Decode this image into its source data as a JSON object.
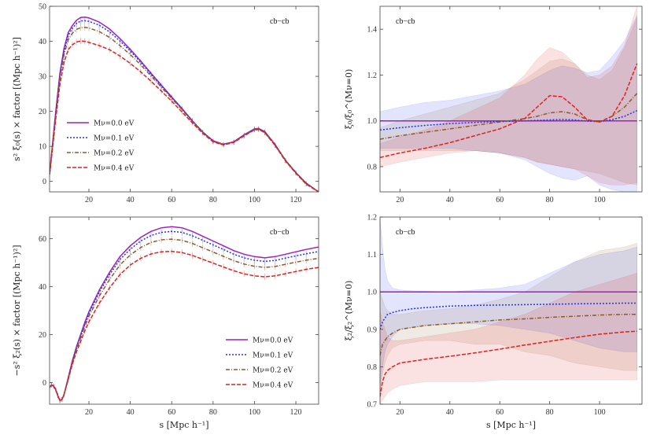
{
  "chart_data": [
    {
      "id": "p1",
      "type": "line",
      "title": "cb−cb",
      "ylabel": "s² ξ₀(s) × factor   [(Mpc h⁻¹)²]",
      "xlim": [
        1,
        131
      ],
      "ylim": [
        -3,
        50
      ],
      "xticks": [
        20,
        40,
        60,
        80,
        100,
        120
      ],
      "yticks": [
        0,
        10,
        20,
        30,
        40,
        50
      ],
      "x": [
        1,
        2,
        4,
        6,
        8,
        10,
        12,
        14,
        16,
        18,
        20,
        25,
        30,
        35,
        40,
        45,
        50,
        55,
        60,
        65,
        70,
        75,
        80,
        85,
        90,
        95,
        100,
        102,
        105,
        110,
        115,
        120,
        125,
        131
      ],
      "series": [
        {
          "name": "Mν=0.0 eV",
          "color": "#a020c0",
          "dash": "",
          "errors": false,
          "values": [
            2,
            8,
            20,
            31,
            38,
            42.5,
            44.5,
            46,
            46.8,
            46.9,
            46.7,
            45.5,
            43.5,
            40.8,
            37.7,
            34.4,
            30.9,
            27.5,
            24.1,
            20.8,
            17.3,
            14.1,
            11.6,
            10.6,
            11.3,
            13.3,
            15.0,
            15.1,
            14.2,
            10.5,
            6.0,
            2.5,
            -0.5,
            -3.0
          ]
        },
        {
          "name": "Mν=0.1 eV",
          "color": "#2233ee",
          "dash": "2 2",
          "errors": true,
          "values": [
            2,
            7.8,
            19.6,
            30.4,
            37.3,
            41.7,
            43.7,
            45.1,
            45.8,
            45.9,
            45.7,
            44.6,
            42.7,
            40.1,
            37.2,
            34.0,
            30.6,
            27.3,
            24.0,
            20.7,
            17.3,
            14.1,
            11.5,
            10.5,
            11.2,
            13.2,
            14.9,
            15.0,
            14.1,
            10.4,
            6.0,
            2.5,
            -0.6,
            -3.0
          ]
        },
        {
          "name": "Mν=0.2 eV",
          "color": "#8b5a2b",
          "dash": "5 2 1 2",
          "errors": true,
          "values": [
            2,
            7.5,
            19.0,
            29.5,
            36.2,
            40.4,
            42.3,
            43.4,
            43.9,
            44.0,
            43.8,
            42.8,
            41.1,
            38.8,
            36.2,
            33.3,
            30.1,
            26.9,
            23.7,
            20.5,
            17.1,
            14.0,
            11.4,
            10.5,
            11.2,
            13.1,
            14.8,
            14.9,
            14.0,
            10.3,
            5.9,
            2.4,
            -0.7,
            -3.0
          ]
        },
        {
          "name": "Mν=0.4 eV",
          "color": "#dd2222",
          "dash": "5 2",
          "errors": true,
          "values": [
            2,
            7.0,
            18.0,
            27.8,
            34.0,
            37.6,
            39.0,
            39.8,
            40.1,
            40.0,
            39.7,
            38.8,
            37.6,
            35.8,
            33.7,
            31.3,
            28.6,
            25.8,
            22.9,
            19.8,
            16.7,
            13.7,
            11.3,
            10.4,
            11.1,
            13.0,
            14.7,
            14.8,
            13.9,
            10.2,
            5.8,
            2.3,
            -0.8,
            -3.0
          ]
        }
      ],
      "legend": "bottom-left",
      "xlabel": ""
    },
    {
      "id": "p2",
      "type": "line",
      "title": "cb−cb",
      "ylabel": "ξ₀/ξ₀^(Mν=0)",
      "xlim": [
        12,
        117
      ],
      "ylim": [
        0.69,
        1.5
      ],
      "xticks": [
        20,
        40,
        60,
        80,
        100
      ],
      "yticks": [
        0.8,
        1.0,
        1.2,
        1.4
      ],
      "x": [
        12,
        20,
        30,
        40,
        50,
        60,
        70,
        75,
        80,
        85,
        90,
        95,
        100,
        105,
        110,
        115
      ],
      "series": [
        {
          "name": "Mν=0.0 eV",
          "color": "#a020c0",
          "dash": "",
          "values": [
            1,
            1,
            1,
            1,
            1,
            1,
            1,
            1,
            1,
            1,
            1,
            1,
            1,
            1,
            1,
            1
          ],
          "band_lo": [
            1,
            1,
            1,
            1,
            1,
            1,
            1,
            1,
            1,
            1,
            1,
            1,
            1,
            1,
            1,
            1
          ],
          "band_hi": [
            1,
            1,
            1,
            1,
            1,
            1,
            1,
            1,
            1,
            1,
            1,
            1,
            1,
            1,
            1,
            1
          ]
        },
        {
          "name": "Mν=0.1 eV",
          "color": "#2233ee",
          "dash": "2 2",
          "values": [
            0.96,
            0.97,
            0.98,
            0.988,
            0.993,
            0.997,
            1.0,
            1.002,
            1.004,
            1.006,
            1.004,
            0.999,
            0.996,
            1.005,
            1.02,
            1.045
          ],
          "band_lo": [
            0.88,
            0.88,
            0.88,
            0.88,
            0.87,
            0.86,
            0.83,
            0.8,
            0.77,
            0.75,
            0.74,
            0.76,
            0.72,
            0.7,
            0.69,
            0.69
          ],
          "band_hi": [
            1.04,
            1.06,
            1.08,
            1.09,
            1.11,
            1.13,
            1.16,
            1.19,
            1.22,
            1.24,
            1.23,
            1.21,
            1.22,
            1.28,
            1.35,
            1.46
          ]
        },
        {
          "name": "Mν=0.2 eV",
          "color": "#8b5a2b",
          "dash": "5 2 1 2",
          "values": [
            0.92,
            0.935,
            0.95,
            0.965,
            0.98,
            0.995,
            1.01,
            1.02,
            1.035,
            1.04,
            1.03,
            1.005,
            0.995,
            1.02,
            1.06,
            1.12
          ],
          "band_lo": [
            0.87,
            0.87,
            0.87,
            0.87,
            0.87,
            0.86,
            0.84,
            0.82,
            0.81,
            0.8,
            0.79,
            0.78,
            0.77,
            0.75,
            0.73,
            0.72
          ],
          "band_hi": [
            0.97,
            1.0,
            1.03,
            1.06,
            1.09,
            1.12,
            1.18,
            1.22,
            1.26,
            1.27,
            1.25,
            1.2,
            1.18,
            1.22,
            1.32,
            1.45
          ]
        },
        {
          "name": "Mν=0.4 eV",
          "color": "#dd2222",
          "dash": "5 2",
          "values": [
            0.84,
            0.86,
            0.88,
            0.905,
            0.935,
            0.965,
            1.01,
            1.06,
            1.11,
            1.105,
            1.06,
            1.005,
            0.995,
            1.02,
            1.11,
            1.25
          ],
          "band_lo": [
            0.8,
            0.82,
            0.84,
            0.86,
            0.87,
            0.86,
            0.84,
            0.82,
            0.81,
            0.8,
            0.79,
            0.76,
            0.73,
            0.72,
            0.72,
            0.73
          ],
          "band_hi": [
            0.9,
            0.93,
            0.96,
            1.0,
            1.05,
            1.1,
            1.2,
            1.27,
            1.32,
            1.3,
            1.25,
            1.19,
            1.2,
            1.24,
            1.33,
            1.5
          ]
        }
      ],
      "xlabel": ""
    },
    {
      "id": "p3",
      "type": "line",
      "title": "cb−cb",
      "ylabel": "−s² ξ₂(s) × factor   [(Mpc h⁻¹)²]",
      "xlim": [
        1,
        131
      ],
      "ylim": [
        -9,
        69
      ],
      "xticks": [
        20,
        40,
        60,
        80,
        100,
        120
      ],
      "yticks": [
        0,
        20,
        40,
        60
      ],
      "x": [
        1,
        2,
        3,
        4,
        5,
        6,
        7,
        8,
        10,
        12,
        14,
        16,
        18,
        20,
        25,
        30,
        35,
        40,
        45,
        50,
        55,
        60,
        65,
        70,
        75,
        80,
        85,
        90,
        95,
        100,
        105,
        110,
        115,
        120,
        125,
        131
      ],
      "series": [
        {
          "name": "Mν=0.0 eV",
          "color": "#a020c0",
          "dash": "",
          "errors": false,
          "values": [
            -2,
            -1,
            -1.5,
            -3,
            -5.5,
            -7.5,
            -7,
            -5,
            2,
            9,
            15,
            20,
            25,
            29.5,
            38.5,
            46,
            52.5,
            57,
            60.5,
            63,
            64.5,
            65,
            64.5,
            63,
            61,
            59,
            57,
            55,
            53.5,
            52.5,
            52,
            52.5,
            53.5,
            54.5,
            55.5,
            56.5
          ]
        },
        {
          "name": "Mν=0.1 eV",
          "color": "#2233ee",
          "dash": "2 2",
          "errors": true,
          "values": [
            -2,
            -1,
            -1.5,
            -3,
            -5.5,
            -7.5,
            -7,
            -5,
            1.8,
            8.7,
            14.6,
            19.5,
            24.4,
            28.8,
            37.6,
            45,
            51.3,
            55.6,
            59,
            61.3,
            62.6,
            63,
            62.6,
            61.2,
            59.3,
            57.4,
            55.5,
            53.5,
            52,
            51,
            50.5,
            50.9,
            51.9,
            52.8,
            53.7,
            54.6
          ]
        },
        {
          "name": "Mν=0.2 eV",
          "color": "#8b5a2b",
          "dash": "5 2 1 2",
          "errors": true,
          "values": [
            -2,
            -1,
            -1.5,
            -3,
            -5.5,
            -7.5,
            -7,
            -5,
            1.6,
            8.3,
            14,
            18.7,
            23.4,
            27.6,
            36,
            43,
            49,
            53.2,
            56.3,
            58.4,
            59.5,
            59.8,
            59.3,
            58,
            56.2,
            54.4,
            52.6,
            50.8,
            49.4,
            48.5,
            48,
            48.4,
            49.3,
            50.2,
            51,
            51.8
          ]
        },
        {
          "name": "Mν=0.4 eV",
          "color": "#dd2222",
          "dash": "5 2",
          "errors": true,
          "values": [
            -2,
            -1,
            -1.5,
            -3,
            -5.5,
            -7.5,
            -7,
            -5,
            1.2,
            7.6,
            12.8,
            17.2,
            21.5,
            25.3,
            33,
            39.5,
            45,
            49,
            51.8,
            53.6,
            54.5,
            54.7,
            54.2,
            53,
            51.4,
            49.8,
            48.2,
            46.6,
            45.3,
            44.5,
            44.1,
            44.5,
            45.4,
            46.3,
            47.2,
            48.0
          ]
        }
      ],
      "legend": "bottom-right",
      "xlabel": "s  [Mpc h⁻¹]"
    },
    {
      "id": "p4",
      "type": "line",
      "title": "cb−cb",
      "ylabel": "ξ₂/ξ₂^(Mν=0)",
      "xlim": [
        12,
        117
      ],
      "ylim": [
        0.7,
        1.2
      ],
      "xticks": [
        20,
        40,
        60,
        80,
        100
      ],
      "yticks": [
        0.7,
        0.8,
        0.9,
        1.0,
        1.1,
        1.2
      ],
      "x": [
        12,
        13,
        14,
        15,
        17,
        20,
        25,
        30,
        40,
        50,
        60,
        70,
        80,
        90,
        100,
        110,
        115
      ],
      "series": [
        {
          "name": "Mν=0.0 eV",
          "color": "#a020c0",
          "dash": "",
          "values": [
            1,
            1,
            1,
            1,
            1,
            1,
            1,
            1,
            1,
            1,
            1,
            1,
            1,
            1,
            1,
            1,
            1
          ],
          "band_lo": [
            1,
            1,
            1,
            1,
            1,
            1,
            1,
            1,
            1,
            1,
            1,
            1,
            1,
            1,
            1,
            1,
            1
          ],
          "band_hi": [
            1,
            1,
            1,
            1,
            1,
            1,
            1,
            1,
            1,
            1,
            1,
            1,
            1,
            1,
            1,
            1,
            1
          ]
        },
        {
          "name": "Mν=0.1 eV",
          "color": "#2233ee",
          "dash": "2 2",
          "values": [
            0.9,
            0.92,
            0.93,
            0.94,
            0.945,
            0.95,
            0.955,
            0.958,
            0.962,
            0.964,
            0.965,
            0.966,
            0.967,
            0.968,
            0.969,
            0.97,
            0.97
          ],
          "band_lo": [
            0.75,
            0.8,
            0.84,
            0.86,
            0.88,
            0.9,
            0.905,
            0.91,
            0.915,
            0.915,
            0.91,
            0.9,
            0.89,
            0.87,
            0.85,
            0.84,
            0.84
          ],
          "band_hi": [
            1.2,
            1.12,
            1.06,
            1.03,
            1.01,
            1.005,
            1.003,
            1.002,
            1.0,
            1.005,
            1.01,
            1.02,
            1.05,
            1.08,
            1.1,
            1.11,
            1.12
          ]
        },
        {
          "name": "Mν=0.2 eV",
          "color": "#8b5a2b",
          "dash": "5 2 1 2",
          "values": [
            0.83,
            0.86,
            0.87,
            0.88,
            0.89,
            0.9,
            0.905,
            0.91,
            0.915,
            0.92,
            0.925,
            0.928,
            0.932,
            0.935,
            0.938,
            0.94,
            0.94
          ],
          "band_lo": [
            0.72,
            0.78,
            0.81,
            0.83,
            0.85,
            0.86,
            0.865,
            0.87,
            0.87,
            0.86,
            0.86,
            0.84,
            0.83,
            0.81,
            0.8,
            0.79,
            0.79
          ],
          "band_hi": [
            1.0,
            0.98,
            0.96,
            0.95,
            0.94,
            0.94,
            0.945,
            0.95,
            0.955,
            0.965,
            0.98,
            1.0,
            1.04,
            1.08,
            1.11,
            1.12,
            1.13
          ]
        },
        {
          "name": "Mν=0.4 eV",
          "color": "#dd2222",
          "dash": "5 2",
          "values": [
            0.72,
            0.76,
            0.78,
            0.79,
            0.8,
            0.81,
            0.815,
            0.82,
            0.828,
            0.837,
            0.847,
            0.858,
            0.868,
            0.878,
            0.887,
            0.893,
            0.895
          ],
          "band_lo": [
            0.7,
            0.71,
            0.72,
            0.73,
            0.74,
            0.75,
            0.755,
            0.76,
            0.76,
            0.76,
            0.765,
            0.765,
            0.765,
            0.765,
            0.765,
            0.765,
            0.765
          ],
          "band_hi": [
            0.95,
            0.92,
            0.9,
            0.88,
            0.87,
            0.87,
            0.875,
            0.88,
            0.89,
            0.9,
            0.92,
            0.94,
            0.97,
            1.0,
            1.02,
            1.04,
            1.05
          ]
        }
      ],
      "xlabel": "s  [Mpc h⁻¹]"
    }
  ]
}
